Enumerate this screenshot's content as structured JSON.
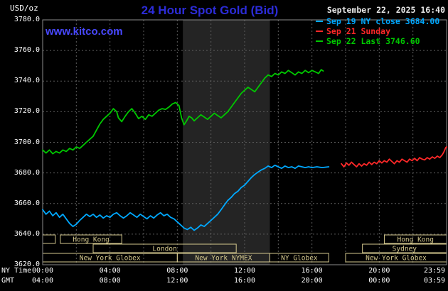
{
  "header": {
    "unit_label": "USD/oz",
    "title": "24 Hour Spot Gold (Bid)",
    "timestamp": "September 22, 2025 16:40",
    "watermark": "www.kitco.com"
  },
  "legend": [
    {
      "id": "sep19",
      "label": "Sep 19 NY close 3684.00",
      "color": "#00a8ff"
    },
    {
      "id": "sep21",
      "label": "Sep 21 Sunday",
      "color": "#ff2828"
    },
    {
      "id": "sep22",
      "label": "Sep 22 Last 3746.60",
      "color": "#00c800"
    }
  ],
  "colors": {
    "background": "#000000",
    "grid": "#5c5c5c",
    "border": "#8c8c8c",
    "band": "#242424",
    "session": "#d4c88e",
    "axis_text": "#ffffff",
    "title": "#2c2cd8",
    "watermark": "#4848ff",
    "timestamp": "#e8e8e8"
  },
  "axes": {
    "y_ticks": [
      "3780.0",
      "3760.0",
      "3740.0",
      "3720.0",
      "3700.0",
      "3680.0",
      "3660.0",
      "3640.0",
      "3620.0"
    ],
    "tick_hours": [
      0,
      4,
      8,
      12,
      16,
      20,
      23.983
    ],
    "x_rows": [
      {
        "label": "NY Time",
        "ticks": [
          "00:00",
          "04:00",
          "08:00",
          "12:00",
          "16:00",
          "20:00",
          "23:59"
        ]
      },
      {
        "label": "GMT",
        "ticks": [
          "04:00",
          "08:00",
          "12:00",
          "16:00",
          "20:00",
          "00:00",
          "03:59"
        ]
      }
    ]
  },
  "sessions": {
    "rows": [
      {
        "boxes": [
          {
            "start": 0,
            "end": 0.75,
            "label": ""
          },
          {
            "start": 1.05,
            "end": 4.7,
            "label": "Hong Kong"
          },
          {
            "start": 20.3,
            "end": 24,
            "label": "Hong Kong"
          }
        ]
      },
      {
        "boxes": [
          {
            "start": 3.0,
            "end": 11.5,
            "label": "London"
          },
          {
            "start": 19.0,
            "end": 24,
            "label": "Sydney"
          }
        ]
      },
      {
        "boxes": [
          {
            "start": 0,
            "end": 8.0,
            "label": "New York Globex"
          },
          {
            "start": 8.0,
            "end": 13.5,
            "label": "New York NYMEX"
          },
          {
            "start": 13.5,
            "end": 17.0,
            "label": "NY Globex"
          },
          {
            "start": 18.0,
            "end": 24,
            "label": "New York Globex"
          }
        ]
      }
    ]
  },
  "chart_data": {
    "type": "line",
    "title": "24 Hour Spot Gold (Bid)",
    "ylabel": "USD/oz",
    "x_unit": "hours (NY time)",
    "xlim": [
      0,
      24
    ],
    "ylim": [
      3620,
      3780
    ],
    "y_step": 20,
    "x_grid_step": 2,
    "band_hours": [
      8.33,
      13.5
    ],
    "series": [
      {
        "id": "sep19",
        "name": "Sep 19 NY close",
        "color": "#00a8ff",
        "close": 3684.0,
        "points": [
          [
            0,
            3656
          ],
          [
            0.2,
            3653
          ],
          [
            0.4,
            3655
          ],
          [
            0.6,
            3652
          ],
          [
            0.8,
            3654
          ],
          [
            1,
            3651
          ],
          [
            1.2,
            3653
          ],
          [
            1.4,
            3650
          ],
          [
            1.6,
            3647
          ],
          [
            1.8,
            3645
          ],
          [
            2,
            3646.5
          ],
          [
            2.2,
            3649
          ],
          [
            2.4,
            3651
          ],
          [
            2.6,
            3653
          ],
          [
            2.8,
            3651.5
          ],
          [
            3,
            3653
          ],
          [
            3.2,
            3651
          ],
          [
            3.4,
            3652.5
          ],
          [
            3.6,
            3650.5
          ],
          [
            3.8,
            3652
          ],
          [
            4,
            3651
          ],
          [
            4.2,
            3653
          ],
          [
            4.4,
            3654
          ],
          [
            4.6,
            3652
          ],
          [
            4.8,
            3650.5
          ],
          [
            5,
            3652
          ],
          [
            5.2,
            3654
          ],
          [
            5.4,
            3652.5
          ],
          [
            5.6,
            3651
          ],
          [
            5.8,
            3653
          ],
          [
            6,
            3651.5
          ],
          [
            6.2,
            3650
          ],
          [
            6.4,
            3652
          ],
          [
            6.6,
            3650.5
          ],
          [
            6.8,
            3652.5
          ],
          [
            7,
            3654
          ],
          [
            7.2,
            3652
          ],
          [
            7.4,
            3653
          ],
          [
            7.6,
            3651
          ],
          [
            7.8,
            3650
          ],
          [
            8,
            3648
          ],
          [
            8.2,
            3646
          ],
          [
            8.4,
            3644
          ],
          [
            8.6,
            3643
          ],
          [
            8.8,
            3644.5
          ],
          [
            9,
            3642.5
          ],
          [
            9.2,
            3644
          ],
          [
            9.4,
            3646
          ],
          [
            9.6,
            3645
          ],
          [
            9.8,
            3647
          ],
          [
            10,
            3649
          ],
          [
            10.2,
            3651
          ],
          [
            10.4,
            3653
          ],
          [
            10.6,
            3656
          ],
          [
            10.8,
            3659
          ],
          [
            11,
            3662
          ],
          [
            11.2,
            3664
          ],
          [
            11.4,
            3666.5
          ],
          [
            11.6,
            3668
          ],
          [
            11.8,
            3670.5
          ],
          [
            12,
            3672
          ],
          [
            12.2,
            3674.5
          ],
          [
            12.4,
            3677
          ],
          [
            12.6,
            3679
          ],
          [
            12.8,
            3680.5
          ],
          [
            13,
            3682
          ],
          [
            13.2,
            3683
          ],
          [
            13.4,
            3684.5
          ],
          [
            13.6,
            3683.5
          ],
          [
            13.8,
            3685
          ],
          [
            14,
            3684
          ],
          [
            14.2,
            3683
          ],
          [
            14.4,
            3684.5
          ],
          [
            14.6,
            3683.5
          ],
          [
            14.8,
            3684
          ],
          [
            15,
            3683
          ],
          [
            15.2,
            3684.5
          ],
          [
            15.4,
            3684
          ],
          [
            15.6,
            3683.5
          ],
          [
            15.8,
            3684
          ],
          [
            16,
            3683.5
          ],
          [
            16.3,
            3684
          ],
          [
            16.6,
            3683.5
          ],
          [
            17,
            3684
          ]
        ]
      },
      {
        "id": "sep21",
        "name": "Sep 21 Sunday",
        "color": "#ff2828",
        "points": [
          [
            17.75,
            3686
          ],
          [
            17.9,
            3684
          ],
          [
            18.05,
            3686.5
          ],
          [
            18.2,
            3685
          ],
          [
            18.35,
            3687
          ],
          [
            18.5,
            3685.5
          ],
          [
            18.65,
            3684
          ],
          [
            18.8,
            3686
          ],
          [
            18.95,
            3684.5
          ],
          [
            19.1,
            3686
          ],
          [
            19.25,
            3685
          ],
          [
            19.4,
            3687
          ],
          [
            19.55,
            3685.5
          ],
          [
            19.7,
            3687
          ],
          [
            19.85,
            3686
          ],
          [
            20,
            3688
          ],
          [
            20.15,
            3686.5
          ],
          [
            20.3,
            3688
          ],
          [
            20.45,
            3687
          ],
          [
            20.6,
            3689
          ],
          [
            20.75,
            3687.5
          ],
          [
            20.9,
            3686
          ],
          [
            21.05,
            3688
          ],
          [
            21.2,
            3687
          ],
          [
            21.35,
            3689
          ],
          [
            21.5,
            3688
          ],
          [
            21.65,
            3687
          ],
          [
            21.8,
            3689
          ],
          [
            21.95,
            3688
          ],
          [
            22.1,
            3689.5
          ],
          [
            22.25,
            3688
          ],
          [
            22.4,
            3690
          ],
          [
            22.55,
            3689
          ],
          [
            22.7,
            3688.5
          ],
          [
            22.85,
            3690
          ],
          [
            23,
            3689
          ],
          [
            23.15,
            3690.5
          ],
          [
            23.3,
            3689.5
          ],
          [
            23.45,
            3691
          ],
          [
            23.6,
            3690
          ],
          [
            23.75,
            3692
          ],
          [
            23.85,
            3694
          ],
          [
            23.95,
            3696.5
          ],
          [
            24,
            3697
          ]
        ]
      },
      {
        "id": "sep22",
        "name": "Sep 22",
        "color": "#00c800",
        "last": 3746.6,
        "points": [
          [
            0,
            3695
          ],
          [
            0.2,
            3693
          ],
          [
            0.4,
            3695
          ],
          [
            0.6,
            3692.5
          ],
          [
            0.8,
            3694
          ],
          [
            1,
            3693
          ],
          [
            1.2,
            3695
          ],
          [
            1.4,
            3694
          ],
          [
            1.6,
            3696
          ],
          [
            1.8,
            3695
          ],
          [
            2,
            3697
          ],
          [
            2.2,
            3696
          ],
          [
            2.4,
            3698
          ],
          [
            2.6,
            3700
          ],
          [
            2.8,
            3702
          ],
          [
            3,
            3704
          ],
          [
            3.2,
            3708
          ],
          [
            3.4,
            3712
          ],
          [
            3.6,
            3715
          ],
          [
            3.8,
            3717
          ],
          [
            4,
            3719
          ],
          [
            4.2,
            3722
          ],
          [
            4.4,
            3720
          ],
          [
            4.5,
            3716
          ],
          [
            4.7,
            3713.5
          ],
          [
            4.9,
            3717
          ],
          [
            5.1,
            3720
          ],
          [
            5.3,
            3722
          ],
          [
            5.5,
            3719
          ],
          [
            5.7,
            3715.5
          ],
          [
            5.9,
            3717
          ],
          [
            6.1,
            3715
          ],
          [
            6.3,
            3718
          ],
          [
            6.5,
            3717
          ],
          [
            6.7,
            3719
          ],
          [
            6.9,
            3721
          ],
          [
            7.1,
            3722
          ],
          [
            7.3,
            3721.5
          ],
          [
            7.5,
            3723
          ],
          [
            7.7,
            3725
          ],
          [
            7.9,
            3726
          ],
          [
            8.1,
            3724
          ],
          [
            8.25,
            3716
          ],
          [
            8.4,
            3711.5
          ],
          [
            8.55,
            3714
          ],
          [
            8.7,
            3717
          ],
          [
            8.85,
            3716
          ],
          [
            9,
            3714
          ],
          [
            9.2,
            3716
          ],
          [
            9.4,
            3718
          ],
          [
            9.6,
            3716.5
          ],
          [
            9.8,
            3715
          ],
          [
            10,
            3717
          ],
          [
            10.2,
            3719
          ],
          [
            10.4,
            3717.5
          ],
          [
            10.6,
            3716
          ],
          [
            10.8,
            3718
          ],
          [
            11,
            3720
          ],
          [
            11.2,
            3723
          ],
          [
            11.4,
            3726
          ],
          [
            11.6,
            3729
          ],
          [
            11.8,
            3732
          ],
          [
            12,
            3734
          ],
          [
            12.2,
            3736
          ],
          [
            12.4,
            3734.5
          ],
          [
            12.6,
            3733
          ],
          [
            12.8,
            3736
          ],
          [
            13,
            3739
          ],
          [
            13.2,
            3742
          ],
          [
            13.4,
            3744
          ],
          [
            13.6,
            3743
          ],
          [
            13.8,
            3745
          ],
          [
            14,
            3744
          ],
          [
            14.2,
            3746
          ],
          [
            14.4,
            3745
          ],
          [
            14.6,
            3747
          ],
          [
            14.8,
            3745.5
          ],
          [
            15,
            3744
          ],
          [
            15.2,
            3746
          ],
          [
            15.4,
            3745
          ],
          [
            15.6,
            3747
          ],
          [
            15.8,
            3745.5
          ],
          [
            16,
            3747
          ],
          [
            16.2,
            3746
          ],
          [
            16.4,
            3745
          ],
          [
            16.55,
            3747.5
          ],
          [
            16.67,
            3746.6
          ]
        ]
      }
    ]
  }
}
